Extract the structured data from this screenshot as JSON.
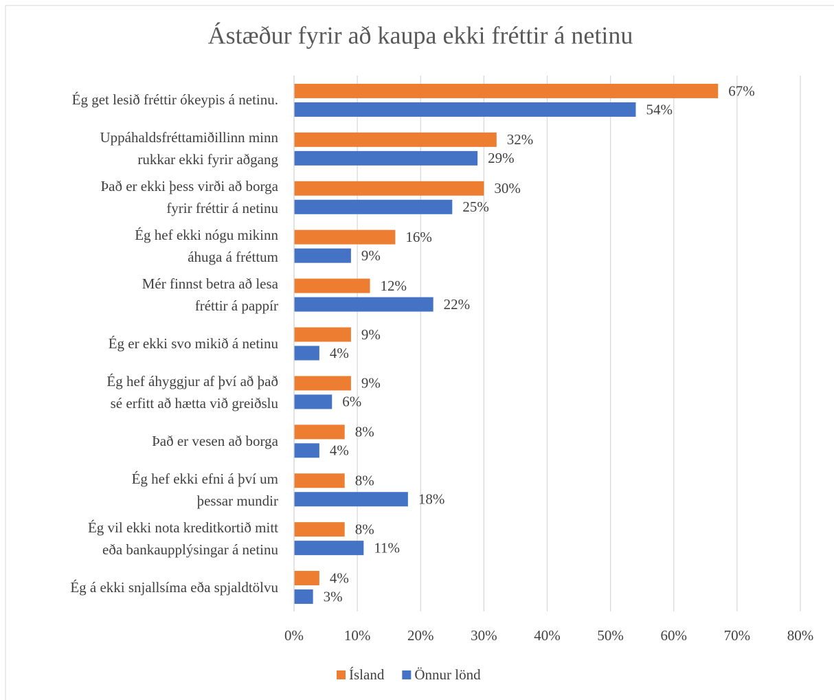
{
  "chart_data": {
    "type": "hbar",
    "title": "Ástæður fyrir að kaupa ekki fréttir á netinu",
    "categories": [
      "Ég get lesið fréttir ókeypis á netinu.",
      "Uppáhaldsfréttamiðillinn minn\nrukkar ekki fyrir aðgang",
      "Það er ekki þess virði að borga\nfyrir fréttir á netinu",
      "Ég hef ekki nógu mikinn\náhuga á fréttum",
      "Mér finnst betra að lesa\nfréttir á pappír",
      "Ég er ekki svo mikið á netinu",
      "Ég hef áhyggjur af því að það\nsé erfitt að hætta við greiðslu",
      "Það er vesen að borga",
      "Ég hef ekki efni á því um\nþessar mundir",
      "Ég vil ekki nota kreditkortið mitt\neða bankaupplýsingar á netinu",
      "Ég á ekki snjallsíma eða spjaldtölvu"
    ],
    "series": [
      {
        "name": "Ísland",
        "color": "#ed7d31",
        "values": [
          67,
          32,
          30,
          16,
          12,
          9,
          9,
          8,
          8,
          8,
          4
        ],
        "value_labels": [
          "67%",
          "32%",
          "30%",
          "16%",
          "12%",
          "9%",
          "9%",
          "8%",
          "8%",
          "8%",
          "4%"
        ]
      },
      {
        "name": "Önnur lönd",
        "color": "#4472c4",
        "values": [
          54,
          29,
          25,
          9,
          22,
          4,
          6,
          4,
          18,
          11,
          3
        ],
        "value_labels": [
          "54%",
          "29%",
          "25%",
          "9%",
          "22%",
          "4%",
          "6%",
          "4%",
          "18%",
          "11%",
          "3%"
        ]
      }
    ],
    "xlim": [
      0,
      80
    ],
    "xticks": [
      {
        "value": 0,
        "label": "0%"
      },
      {
        "value": 10,
        "label": "10%"
      },
      {
        "value": 20,
        "label": "20%"
      },
      {
        "value": 30,
        "label": "30%"
      },
      {
        "value": 40,
        "label": "40%"
      },
      {
        "value": 50,
        "label": "50%"
      },
      {
        "value": 60,
        "label": "60%"
      },
      {
        "value": 70,
        "label": "70%"
      },
      {
        "value": 80,
        "label": "80%"
      }
    ],
    "grid": true,
    "legend": "bottom"
  }
}
